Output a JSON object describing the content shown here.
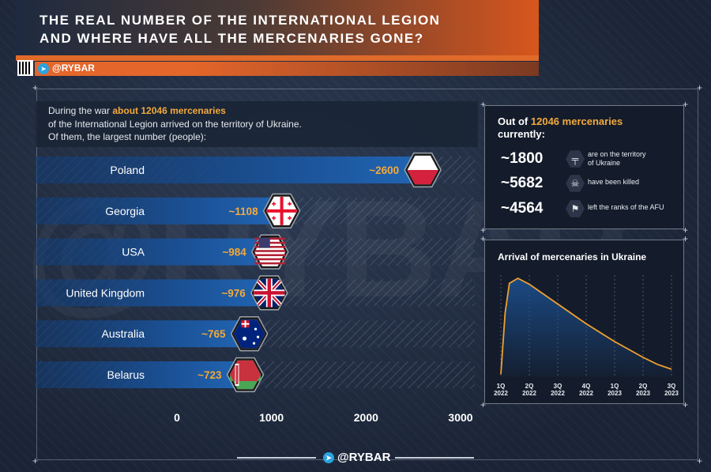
{
  "header": {
    "title_line1": "THE REAL NUMBER OF THE INTERNATIONAL LEGION",
    "title_line2": "AND WHERE HAVE ALL THE MERCENARIES GONE?",
    "handle": "@RYBAR"
  },
  "intro": {
    "prefix": "During the war ",
    "highlight": "about 12046 mercenaries",
    "line2": "of the International Legion arrived on the territory of Ukraine.",
    "line3": "Of them, the largest number (people):"
  },
  "stats": {
    "title_prefix": "Out of ",
    "title_highlight": "12046 mercenaries",
    "title_line2": "currently:",
    "rows": [
      {
        "value": "~1800",
        "icon": "rifle-icon",
        "desc1": "are on the territory",
        "desc2": "of Ukraine"
      },
      {
        "value": "~5682",
        "icon": "skull-icon",
        "desc1": "have been killed",
        "desc2": ""
      },
      {
        "value": "~4564",
        "icon": "white-flag-icon",
        "desc1": "left the ranks of the AFU",
        "desc2": ""
      }
    ]
  },
  "arrival": {
    "title": "Arrival of mercenaries in Ukraine"
  },
  "colors": {
    "accent": "#f3a93a",
    "header_orange": "#e5662a",
    "bar": "#1d5aa5",
    "line": "#f0a030"
  },
  "footer": {
    "handle": "@RYBAR"
  },
  "chart_data": [
    {
      "type": "bar",
      "orientation": "horizontal",
      "categories": [
        "Poland",
        "Georgia",
        "USA",
        "United Kingdom",
        "Australia",
        "Belarus"
      ],
      "values": [
        2600,
        1108,
        984,
        976,
        765,
        723
      ],
      "value_labels": [
        "~2600",
        "~1108",
        "~984",
        "~976",
        "~765",
        "~723"
      ],
      "flags": [
        "poland-flag-icon",
        "georgia-flag-icon",
        "usa-flag-icon",
        "uk-flag-icon",
        "australia-flag-icon",
        "belarus-flag-icon"
      ],
      "xlim": [
        0,
        3000
      ],
      "xticks": [
        "0",
        "1000",
        "2000",
        "3000"
      ],
      "grid": false
    },
    {
      "type": "area",
      "title": "Arrival of mercenaries in Ukraine",
      "categories": [
        "1Q 2022",
        "2Q 2022",
        "3Q 2022",
        "4Q 2022",
        "1Q 2023",
        "2Q 2023",
        "3Q 2023"
      ],
      "x": [
        0,
        0.15,
        0.3,
        0.6,
        1.0,
        1.5,
        2.0,
        2.5,
        3.0,
        3.5,
        4.0,
        4.5,
        5.0,
        5.5,
        6.0
      ],
      "y": [
        0.03,
        0.65,
        0.95,
        1.0,
        0.94,
        0.84,
        0.74,
        0.64,
        0.54,
        0.45,
        0.36,
        0.28,
        0.2,
        0.13,
        0.08
      ],
      "grid": "vertical dashed"
    }
  ]
}
